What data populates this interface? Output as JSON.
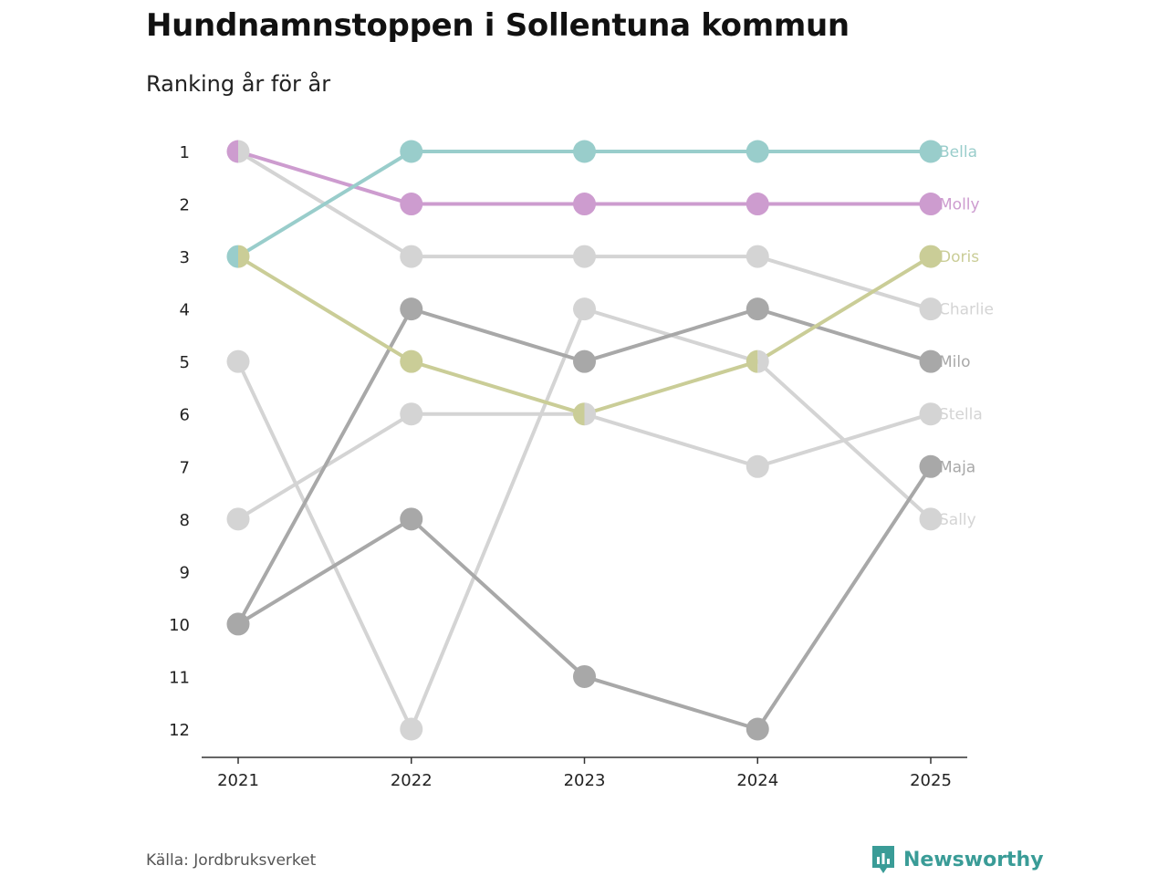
{
  "title": "Hundnamnstoppen i Sollentuna kommun",
  "subtitle": "Ranking år för år",
  "source": "Källa: Jordbruksverket",
  "brand": {
    "name": "Newsworthy",
    "icon": "newsworthy-logo-icon",
    "color": "#3a9c97"
  },
  "chart_data": {
    "type": "line",
    "title": "Hundnamnstoppen i Sollentuna kommun",
    "subtitle": "Ranking år för år",
    "x": [
      "2021",
      "2022",
      "2023",
      "2024",
      "2025"
    ],
    "y_ticks": [
      "1",
      "2",
      "3",
      "4",
      "5",
      "6",
      "7",
      "8",
      "9",
      "10",
      "11",
      "12"
    ],
    "ylim": [
      1,
      12
    ],
    "y_inverted": true,
    "xlabel": "",
    "ylabel": "",
    "series": [
      {
        "name": "Sally",
        "values": [
          5,
          12,
          4,
          5,
          8
        ],
        "color": "#d4d4d4"
      },
      {
        "name": "Stella",
        "values": [
          8,
          6,
          6,
          7,
          6
        ],
        "color": "#d4d4d4"
      },
      {
        "name": "Charlie",
        "values": [
          1,
          3,
          3,
          3,
          4
        ],
        "color": "#d4d4d4"
      },
      {
        "name": "Maja",
        "values": [
          10,
          8,
          11,
          12,
          7
        ],
        "color": "#a8a8a8"
      },
      {
        "name": "Milo",
        "values": [
          10,
          4,
          5,
          4,
          5
        ],
        "color": "#a8a8a8"
      },
      {
        "name": "Doris",
        "values": [
          3,
          5,
          6,
          5,
          3
        ],
        "color": "#cacd97"
      },
      {
        "name": "Molly",
        "values": [
          1,
          2,
          2,
          2,
          2
        ],
        "color": "#cd9ccf"
      },
      {
        "name": "Bella",
        "values": [
          3,
          1,
          1,
          1,
          1
        ],
        "color": "#99cdcb"
      }
    ]
  }
}
